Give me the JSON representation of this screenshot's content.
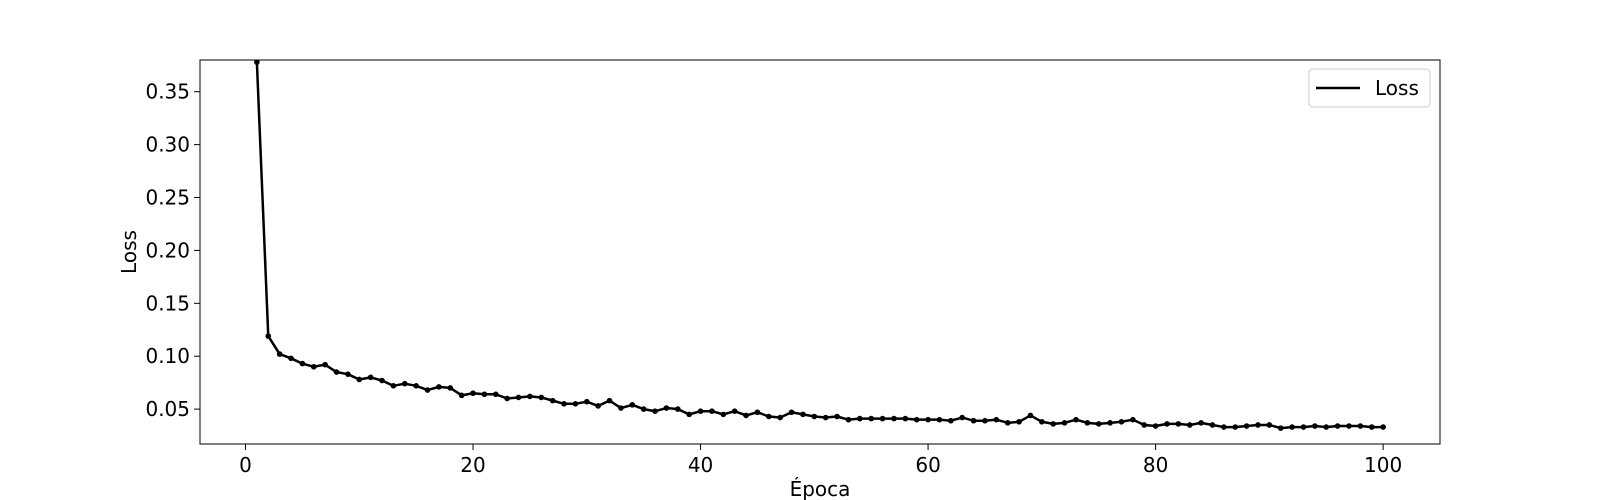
{
  "chart_data": {
    "type": "line",
    "title": "",
    "xlabel": "Época",
    "ylabel": "Loss",
    "xlim": [
      -4,
      105
    ],
    "ylim": [
      0.017,
      0.38
    ],
    "xticks": [
      0,
      20,
      40,
      60,
      80,
      100
    ],
    "yticks": [
      0.05,
      0.1,
      0.15,
      0.2,
      0.25,
      0.3,
      0.35
    ],
    "xtick_labels": [
      "0",
      "20",
      "40",
      "60",
      "80",
      "100"
    ],
    "ytick_labels": [
      "0.05",
      "0.10",
      "0.15",
      "0.20",
      "0.25",
      "0.30",
      "0.35"
    ],
    "grid": false,
    "legend": "top-right",
    "series": [
      {
        "name": "Loss",
        "color": "#000000",
        "marker": "dot",
        "x": [
          1,
          2,
          3,
          4,
          5,
          6,
          7,
          8,
          9,
          10,
          11,
          12,
          13,
          14,
          15,
          16,
          17,
          18,
          19,
          20,
          21,
          22,
          23,
          24,
          25,
          26,
          27,
          28,
          29,
          30,
          31,
          32,
          33,
          34,
          35,
          36,
          37,
          38,
          39,
          40,
          41,
          42,
          43,
          44,
          45,
          46,
          47,
          48,
          49,
          50,
          51,
          52,
          53,
          54,
          55,
          56,
          57,
          58,
          59,
          60,
          61,
          62,
          63,
          64,
          65,
          66,
          67,
          68,
          69,
          70,
          71,
          72,
          73,
          74,
          75,
          76,
          77,
          78,
          79,
          80,
          81,
          82,
          83,
          84,
          85,
          86,
          87,
          88,
          89,
          90,
          91,
          92,
          93,
          94,
          95,
          96,
          97,
          98,
          99,
          100
        ],
        "y": [
          0.378,
          0.119,
          0.102,
          0.098,
          0.093,
          0.09,
          0.092,
          0.085,
          0.083,
          0.078,
          0.08,
          0.077,
          0.072,
          0.074,
          0.072,
          0.068,
          0.071,
          0.07,
          0.063,
          0.065,
          0.064,
          0.064,
          0.06,
          0.061,
          0.062,
          0.061,
          0.058,
          0.055,
          0.055,
          0.057,
          0.053,
          0.058,
          0.051,
          0.054,
          0.05,
          0.048,
          0.051,
          0.05,
          0.045,
          0.048,
          0.048,
          0.045,
          0.048,
          0.044,
          0.047,
          0.043,
          0.042,
          0.047,
          0.045,
          0.043,
          0.042,
          0.043,
          0.04,
          0.041,
          0.041,
          0.041,
          0.041,
          0.041,
          0.04,
          0.04,
          0.04,
          0.039,
          0.042,
          0.039,
          0.039,
          0.04,
          0.037,
          0.038,
          0.044,
          0.038,
          0.036,
          0.037,
          0.04,
          0.037,
          0.036,
          0.037,
          0.038,
          0.04,
          0.035,
          0.034,
          0.036,
          0.036,
          0.035,
          0.037,
          0.035,
          0.033,
          0.033,
          0.034,
          0.035,
          0.035,
          0.032,
          0.033,
          0.033,
          0.034,
          0.033,
          0.034,
          0.034,
          0.034,
          0.033,
          0.033
        ]
      }
    ]
  }
}
